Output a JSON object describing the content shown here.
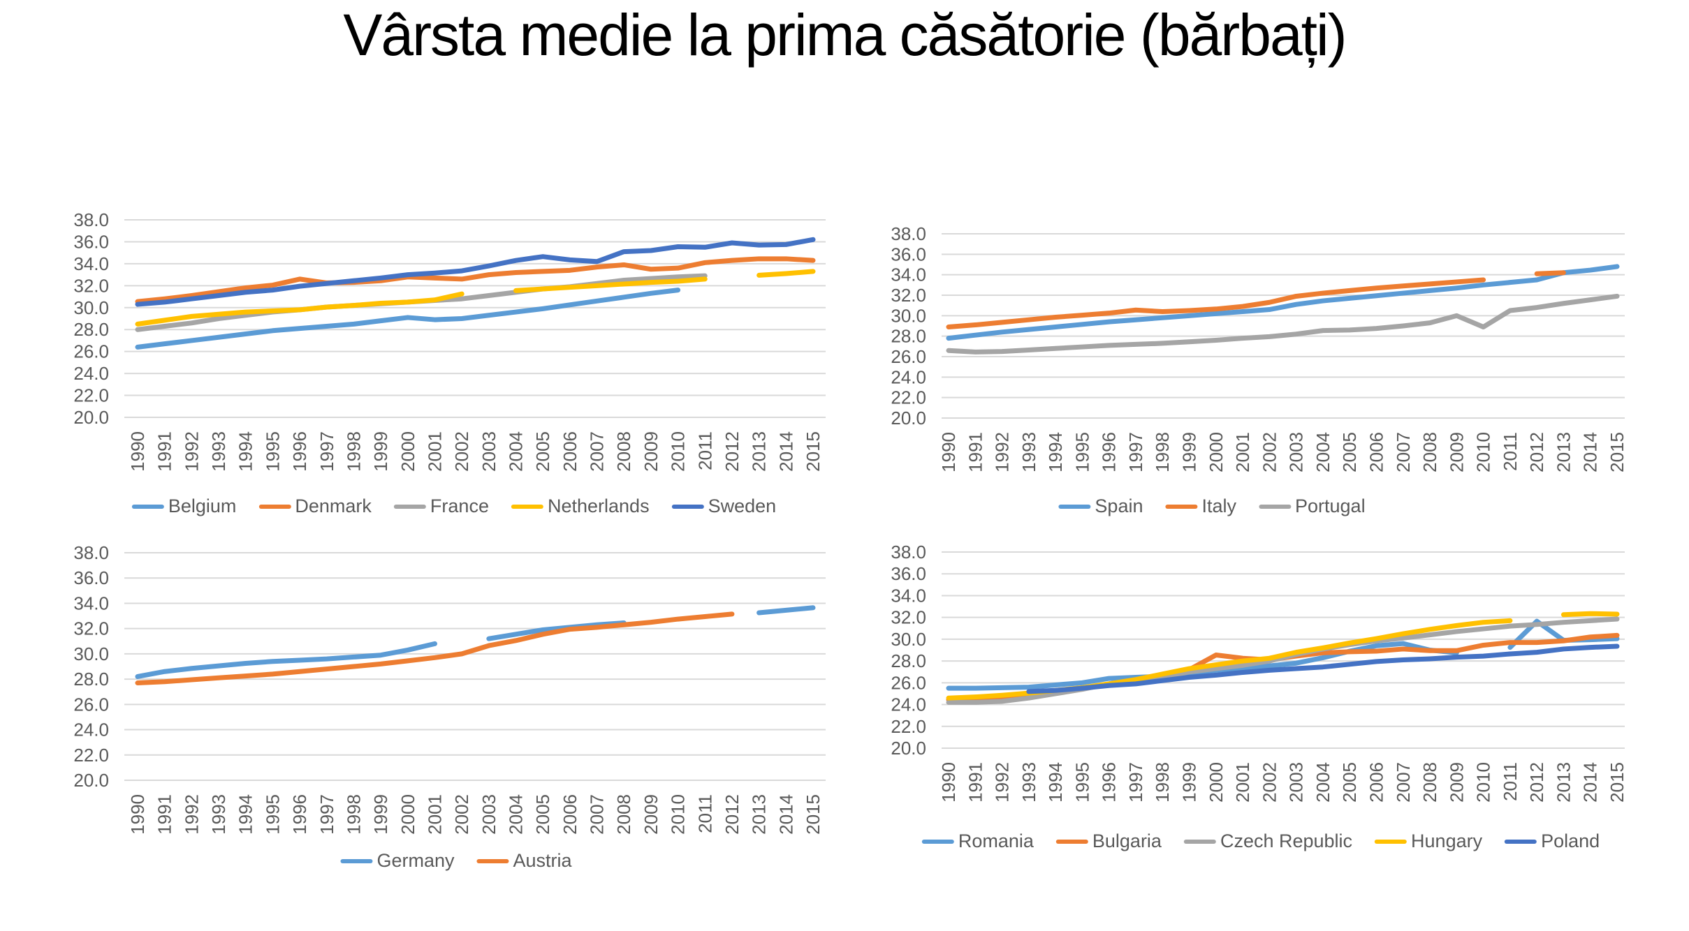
{
  "page": {
    "title": "Vârsta medie la prima căsătorie (bărbați)"
  },
  "palette": {
    "light_blue": "#5B9BD5",
    "orange": "#ED7D31",
    "gray": "#A5A5A5",
    "yellow": "#FFC000",
    "dark_blue": "#4472C4",
    "axis_text": "#595959",
    "gridline": "#D9D9D9"
  },
  "chart_data": [
    {
      "id": "chart-top-left",
      "type": "line",
      "title": "",
      "xlabel": "",
      "ylabel": "",
      "ylim": [
        20,
        38
      ],
      "grid": true,
      "legend_position": "bottom",
      "yticks": [
        "38.0",
        "36.0",
        "34.0",
        "32.0",
        "30.0",
        "28.0",
        "26.0",
        "24.0",
        "22.0",
        "20.0"
      ],
      "x": [
        "1990",
        "1991",
        "1992",
        "1993",
        "1994",
        "1995",
        "1996",
        "1997",
        "1998",
        "1999",
        "2000",
        "2001",
        "2002",
        "2003",
        "2004",
        "2005",
        "2006",
        "2007",
        "2008",
        "2009",
        "2010",
        "2011",
        "2012",
        "2013",
        "2014",
        "2015"
      ],
      "series": [
        {
          "name": "Belgium",
          "color": "#5B9BD5",
          "values": [
            26.4,
            26.7,
            27.0,
            27.3,
            27.6,
            27.9,
            28.1,
            28.3,
            28.5,
            28.8,
            29.1,
            28.9,
            29.0,
            29.3,
            29.6,
            29.9,
            30.25,
            30.6,
            30.95,
            31.3,
            31.6,
            null,
            null,
            null,
            null,
            null
          ]
        },
        {
          "name": "Denmark",
          "color": "#ED7D31",
          "values": [
            30.55,
            30.8,
            31.1,
            31.45,
            31.8,
            32.05,
            32.6,
            32.25,
            32.3,
            32.45,
            32.8,
            32.7,
            32.6,
            33.0,
            33.2,
            33.3,
            33.4,
            33.7,
            33.9,
            33.5,
            33.6,
            34.1,
            34.3,
            34.45,
            34.45,
            34.3
          ]
        },
        {
          "name": "France",
          "color": "#A5A5A5",
          "values": [
            28.0,
            28.3,
            28.6,
            29.0,
            29.3,
            29.6,
            29.8,
            30.05,
            30.2,
            30.35,
            30.5,
            30.65,
            30.8,
            31.1,
            31.4,
            31.7,
            31.9,
            32.2,
            32.5,
            32.65,
            32.8,
            32.9,
            null,
            null,
            null,
            null
          ]
        },
        {
          "name": "Netherlands",
          "color": "#FFC000",
          "values": [
            28.5,
            28.85,
            29.2,
            29.4,
            29.6,
            29.7,
            29.8,
            30.05,
            30.2,
            30.4,
            30.5,
            30.7,
            31.25,
            null,
            31.55,
            31.7,
            31.85,
            32.0,
            32.15,
            32.3,
            32.4,
            32.6,
            null,
            32.95,
            33.1,
            33.3
          ]
        },
        {
          "name": "Sweden",
          "color": "#4472C4",
          "values": [
            30.3,
            30.5,
            30.8,
            31.1,
            31.4,
            31.6,
            31.95,
            32.2,
            32.45,
            32.7,
            33.0,
            33.15,
            33.35,
            33.8,
            34.3,
            34.65,
            34.35,
            34.2,
            35.1,
            35.2,
            35.55,
            35.5,
            35.9,
            35.7,
            35.75,
            36.2
          ]
        }
      ]
    },
    {
      "id": "chart-top-right",
      "type": "line",
      "title": "",
      "xlabel": "",
      "ylabel": "",
      "ylim": [
        20,
        38
      ],
      "grid": true,
      "legend_position": "bottom",
      "yticks": [
        "38.0",
        "36.0",
        "34.0",
        "32.0",
        "30.0",
        "28.0",
        "26.0",
        "24.0",
        "22.0",
        "20.0"
      ],
      "x": [
        "1990",
        "1991",
        "1992",
        "1993",
        "1994",
        "1995",
        "1996",
        "1997",
        "1998",
        "1999",
        "2000",
        "2001",
        "2002",
        "2003",
        "2004",
        "2005",
        "2006",
        "2007",
        "2008",
        "2009",
        "2010",
        "2011",
        "2012",
        "2013",
        "2014",
        "2015"
      ],
      "series": [
        {
          "name": "Spain",
          "color": "#5B9BD5",
          "values": [
            27.8,
            28.1,
            28.4,
            28.65,
            28.9,
            29.15,
            29.4,
            29.6,
            29.8,
            30.0,
            30.2,
            30.4,
            30.6,
            31.1,
            31.45,
            31.7,
            31.95,
            32.2,
            32.45,
            32.7,
            33.0,
            33.25,
            33.5,
            34.2,
            34.45,
            34.8
          ]
        },
        {
          "name": "Italy",
          "color": "#ED7D31",
          "values": [
            28.9,
            29.1,
            29.35,
            29.6,
            29.85,
            30.05,
            30.25,
            30.55,
            30.4,
            30.5,
            30.65,
            30.9,
            31.3,
            31.9,
            32.2,
            32.45,
            32.7,
            32.9,
            33.1,
            33.3,
            33.5,
            null,
            34.1,
            34.2,
            null,
            null
          ]
        },
        {
          "name": "Portugal",
          "color": "#A5A5A5",
          "values": [
            26.6,
            26.45,
            26.5,
            26.65,
            26.8,
            26.95,
            27.1,
            27.2,
            27.3,
            27.45,
            27.6,
            27.8,
            27.95,
            28.2,
            28.55,
            28.6,
            28.75,
            29.0,
            29.3,
            30.0,
            28.9,
            30.5,
            30.8,
            31.2,
            31.55,
            31.9
          ]
        }
      ]
    },
    {
      "id": "chart-bottom-left",
      "type": "line",
      "title": "",
      "xlabel": "",
      "ylabel": "",
      "ylim": [
        20,
        38
      ],
      "grid": true,
      "legend_position": "bottom",
      "yticks": [
        "38.0",
        "36.0",
        "34.0",
        "32.0",
        "30.0",
        "28.0",
        "26.0",
        "24.0",
        "22.0",
        "20.0"
      ],
      "x": [
        "1990",
        "1991",
        "1992",
        "1993",
        "1994",
        "1995",
        "1996",
        "1997",
        "1998",
        "1999",
        "2000",
        "2001",
        "2002",
        "2003",
        "2004",
        "2005",
        "2006",
        "2007",
        "2008",
        "2009",
        "2010",
        "2011",
        "2012",
        "2013",
        "2014",
        "2015"
      ],
      "series": [
        {
          "name": "Germany",
          "color": "#5B9BD5",
          "values": [
            28.2,
            28.6,
            28.85,
            29.05,
            29.25,
            29.4,
            29.5,
            29.6,
            29.75,
            29.9,
            30.3,
            30.8,
            null,
            31.2,
            31.55,
            31.9,
            32.1,
            32.3,
            32.45,
            null,
            null,
            null,
            null,
            33.25,
            33.45,
            33.65
          ]
        },
        {
          "name": "Austria",
          "color": "#ED7D31",
          "values": [
            27.7,
            27.8,
            27.95,
            28.1,
            28.25,
            28.4,
            28.6,
            28.8,
            29.0,
            29.2,
            29.45,
            29.7,
            30.0,
            30.65,
            31.05,
            31.55,
            31.95,
            32.1,
            32.3,
            32.5,
            32.75,
            32.95,
            33.15,
            null,
            null,
            null
          ]
        }
      ]
    },
    {
      "id": "chart-bottom-right",
      "type": "line",
      "title": "",
      "xlabel": "",
      "ylabel": "",
      "ylim": [
        20,
        38
      ],
      "grid": true,
      "legend_position": "bottom",
      "yticks": [
        "38.0",
        "36.0",
        "34.0",
        "32.0",
        "30.0",
        "28.0",
        "26.0",
        "24.0",
        "22.0",
        "20.0"
      ],
      "x": [
        "1990",
        "1991",
        "1992",
        "1993",
        "1994",
        "1995",
        "1996",
        "1997",
        "1998",
        "1999",
        "2000",
        "2001",
        "2002",
        "2003",
        "2004",
        "2005",
        "2006",
        "2007",
        "2008",
        "2009",
        "2010",
        "2011",
        "2012",
        "2013",
        "2014",
        "2015"
      ],
      "series": [
        {
          "name": "Romania",
          "color": "#5B9BD5",
          "values": [
            25.5,
            25.5,
            25.55,
            25.6,
            25.8,
            26.0,
            26.4,
            26.5,
            26.6,
            26.9,
            27.15,
            27.35,
            27.55,
            27.8,
            28.3,
            28.9,
            29.4,
            29.6,
            29.0,
            28.75,
            null,
            29.25,
            31.65,
            29.9,
            29.95,
            30.05
          ]
        },
        {
          "name": "Bulgaria",
          "color": "#ED7D31",
          "values": [
            24.45,
            24.55,
            24.7,
            24.9,
            25.15,
            25.45,
            25.9,
            26.2,
            26.55,
            27.2,
            28.55,
            28.25,
            28.1,
            28.45,
            28.75,
            28.85,
            28.9,
            29.1,
            28.95,
            28.95,
            29.45,
            29.7,
            29.7,
            29.85,
            30.2,
            30.35
          ]
        },
        {
          "name": "Czech Republic",
          "color": "#A5A5A5",
          "values": [
            24.2,
            24.2,
            24.3,
            24.6,
            25.0,
            25.4,
            25.9,
            26.2,
            26.5,
            27.0,
            27.3,
            27.6,
            28.0,
            28.6,
            29.1,
            29.5,
            29.85,
            30.1,
            30.4,
            30.7,
            30.95,
            31.2,
            31.35,
            31.55,
            31.7,
            31.85
          ]
        },
        {
          "name": "Hungary",
          "color": "#FFC000",
          "values": [
            24.6,
            24.7,
            24.85,
            25.05,
            25.3,
            25.55,
            25.9,
            26.3,
            26.8,
            27.3,
            27.65,
            28.0,
            28.25,
            28.8,
            29.2,
            29.65,
            30.05,
            30.5,
            30.9,
            31.25,
            31.55,
            31.7,
            null,
            32.25,
            32.35,
            32.3
          ]
        },
        {
          "name": "Poland",
          "color": "#4472C4",
          "values": [
            null,
            null,
            null,
            25.2,
            25.3,
            25.5,
            25.75,
            25.9,
            26.2,
            26.5,
            26.7,
            26.95,
            27.15,
            27.3,
            27.45,
            27.7,
            27.95,
            28.1,
            28.2,
            28.35,
            28.45,
            28.65,
            28.8,
            29.1,
            29.25,
            29.35
          ]
        }
      ]
    }
  ]
}
